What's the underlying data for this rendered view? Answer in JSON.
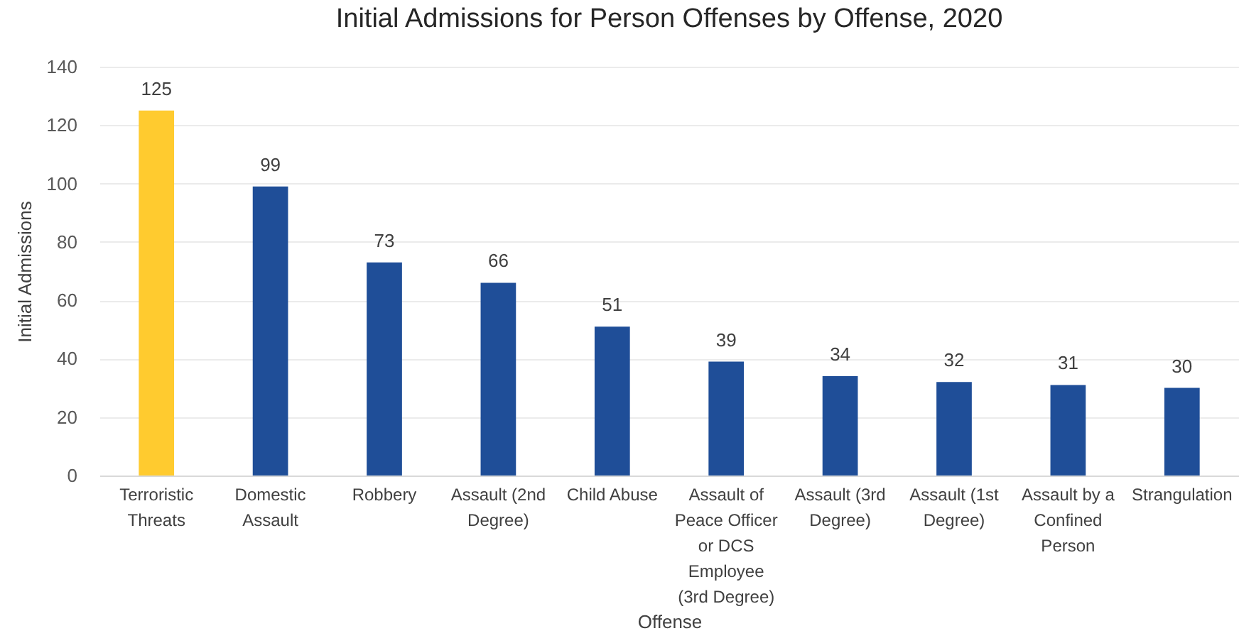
{
  "chart_data": {
    "type": "bar",
    "title": "Initial Admissions for Person Offenses by Offense, 2020",
    "xlabel": "Offense",
    "ylabel": "Initial Admissions",
    "categories": [
      "Terroristic Threats",
      "Domestic Assault",
      "Robbery",
      "Assault (2nd Degree)",
      "Child Abuse",
      "Assault of Peace Officer or DCS Employee (3rd Degree)",
      "Assault (3rd Degree)",
      "Assault (1st Degree)",
      "Assault by a Confined Person",
      "Strangulation"
    ],
    "values": [
      125,
      99,
      73,
      66,
      51,
      39,
      34,
      32,
      31,
      30
    ],
    "colors": [
      "#ffcb2f",
      "#1f4e98",
      "#1f4e98",
      "#1f4e98",
      "#1f4e98",
      "#1f4e98",
      "#1f4e98",
      "#1f4e98",
      "#1f4e98",
      "#1f4e98"
    ],
    "ylim": [
      0,
      140
    ],
    "yticks": [
      0,
      20,
      40,
      60,
      80,
      100,
      120,
      140
    ],
    "grid": "y",
    "data_labels": true
  }
}
